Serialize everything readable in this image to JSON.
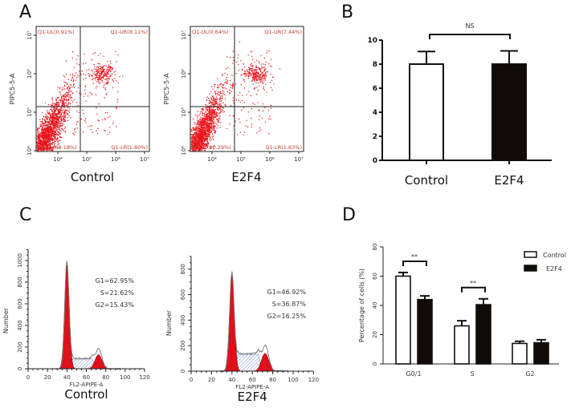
{
  "panels": {
    "a": "A",
    "b": "B",
    "c": "C",
    "d": "D"
  },
  "colors": {
    "dots": "#e8141b",
    "peak_fill": "#e0101a",
    "s_phase_hatch": "#5b6cc4",
    "envelope": "#777777",
    "bar_control": "#ffffff",
    "bar_e2f4": "#120a08"
  },
  "chart_data": [
    {
      "type": "scatter",
      "title": "Control",
      "ylabel": "PIPC5-5-A",
      "xscale": "log",
      "yscale": "log",
      "xticks": [
        "10⁴",
        "10⁵",
        "10⁶",
        "10⁷"
      ],
      "yticks": [
        "10⁴",
        "10⁵",
        "10⁶",
        "10⁷"
      ],
      "quadrants": {
        "UL": "Q1-UL(0.91%)",
        "UR": "Q1-UR(8.11%)",
        "LL": "Q1-LL(89.18%)",
        "LR": "Q1-LR(1.80%)"
      }
    },
    {
      "type": "scatter",
      "title": "E2F4",
      "ylabel": "PIPC5-5-A",
      "xscale": "log",
      "yscale": "log",
      "xticks": [
        "10⁴",
        "10⁵",
        "10⁶",
        "10⁷"
      ],
      "yticks": [
        "10⁴",
        "10⁵",
        "10⁶",
        "10⁷"
      ],
      "quadrants": {
        "UL": "Q1-UL(0.64%)",
        "UR": "Q1-UR(7.44%)",
        "LL": "Q1-LL(90.29%)",
        "LR": "Q1-LR(1.63%)"
      }
    },
    {
      "type": "bar",
      "categories": [
        "Control",
        "E2F4"
      ],
      "values": [
        8.0,
        8.0
      ],
      "error_upper": [
        9.05,
        9.1
      ],
      "ylim": [
        0,
        10
      ],
      "yticks": [
        "0",
        "2",
        "4",
        "6",
        "8",
        "10"
      ],
      "annotation": "NS"
    },
    {
      "type": "area",
      "title": "Control",
      "xlabel": "FL2-APIPE-A",
      "ylabel": "Number",
      "xlim": [
        0,
        120
      ],
      "ylim": [
        0,
        1100
      ],
      "xticks": [
        "0",
        "20",
        "40",
        "60",
        "80",
        "100",
        "120"
      ],
      "yticks": [
        "0",
        "200",
        "400",
        "600",
        "800",
        "1000"
      ],
      "annotations": [
        "G1=62.95%",
        "S=21.62%",
        "G2=15.43%"
      ]
    },
    {
      "type": "area",
      "title": "E2F4",
      "xlabel": "FL2-APIPE-A",
      "ylabel": "Number",
      "xlim": [
        0,
        120
      ],
      "ylim": [
        0,
        900
      ],
      "xticks": [
        "0",
        "20",
        "40",
        "60",
        "80",
        "100",
        "120"
      ],
      "yticks": [
        "0",
        "200",
        "400",
        "600",
        "800"
      ],
      "annotations": [
        "G1=46.92%",
        "S=36.87%",
        "G2=16.25%"
      ]
    },
    {
      "type": "bar",
      "categories": [
        "G0/1",
        "S",
        "G2"
      ],
      "series": [
        {
          "name": "Control",
          "values": [
            60,
            26,
            14
          ],
          "error_upper": [
            62.5,
            29.5,
            15.5
          ]
        },
        {
          "name": "E2F4",
          "values": [
            44,
            40.5,
            14.5
          ],
          "error_upper": [
            46.5,
            44.5,
            16.5
          ]
        }
      ],
      "ylabel": "Percentage of cells (%)",
      "ylim": [
        0,
        80
      ],
      "yticks": [
        "0",
        "20",
        "40",
        "60",
        "80"
      ],
      "significance": [
        {
          "category": "G0/1",
          "label": "**"
        },
        {
          "category": "S",
          "label": "**"
        }
      ],
      "legend": "top-right"
    }
  ]
}
